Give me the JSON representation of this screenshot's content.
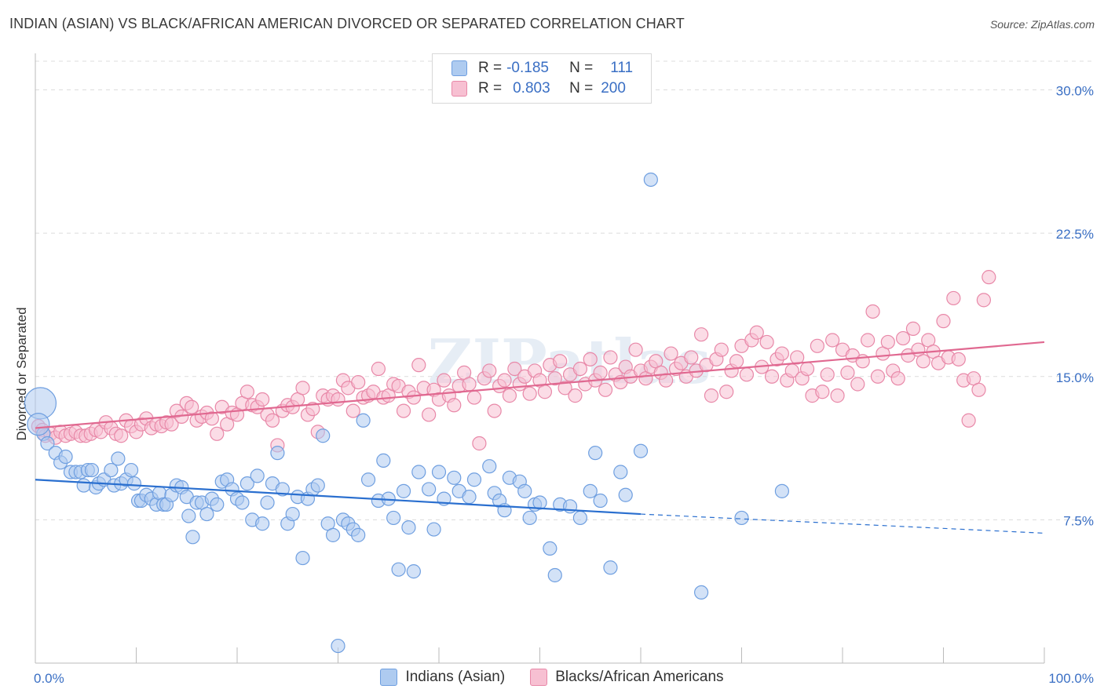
{
  "header": {
    "title": "INDIAN (ASIAN) VS BLACK/AFRICAN AMERICAN DIVORCED OR SEPARATED CORRELATION CHART",
    "source": "Source: ZipAtlas.com"
  },
  "legend_stats": [
    {
      "r_label": "R =",
      "r_value": "-0.185",
      "n_label": "N =",
      "n_value": "111"
    },
    {
      "r_label": "R =",
      "r_value": "0.803",
      "n_label": "N =",
      "n_value": "200"
    }
  ],
  "watermark": "ZIPatlas",
  "colors": {
    "blue_fill": "#aecbf0",
    "blue_stroke": "#6f9fe0",
    "blue_line": "#2a6fcf",
    "pink_fill": "#f7c0d2",
    "pink_stroke": "#e888a8",
    "pink_line": "#e06890",
    "tick_label": "#3a6fc4"
  },
  "chart_data": {
    "type": "scatter",
    "title": "INDIAN (ASIAN) VS BLACK/AFRICAN AMERICAN DIVORCED OR SEPARATED CORRELATION CHART",
    "xlabel": "",
    "ylabel": "Divorced or Separated",
    "xlim": [
      0,
      100
    ],
    "ylim": [
      0,
      31.5
    ],
    "x_tick_labels": [
      "0.0%",
      "100.0%"
    ],
    "y_ticks": [
      7.5,
      15.0,
      22.5,
      30.0
    ],
    "y_tick_labels": [
      "7.5%",
      "15.0%",
      "22.5%",
      "30.0%"
    ],
    "grid": true,
    "legend_position": "bottom",
    "series": [
      {
        "name": "Indians (Asian)",
        "color": "#aecbf0",
        "trend": {
          "x": [
            0,
            60
          ],
          "y": [
            9.6,
            7.8
          ],
          "dashed_extension_to": [
            100,
            6.8
          ]
        },
        "points": [
          [
            0.5,
            13.6
          ],
          [
            0.8,
            12.0
          ],
          [
            1.2,
            11.5
          ],
          [
            2,
            11.0
          ],
          [
            2.5,
            10.5
          ],
          [
            3,
            10.8
          ],
          [
            3.5,
            10.0
          ],
          [
            4,
            10.0
          ],
          [
            4.5,
            10.0
          ],
          [
            4.8,
            9.3
          ],
          [
            5.2,
            10.1
          ],
          [
            5.6,
            10.1
          ],
          [
            6,
            9.2
          ],
          [
            6.3,
            9.4
          ],
          [
            6.8,
            9.6
          ],
          [
            7.5,
            10.1
          ],
          [
            7.8,
            9.3
          ],
          [
            8.2,
            10.7
          ],
          [
            8.5,
            9.4
          ],
          [
            9,
            9.6
          ],
          [
            9.5,
            10.1
          ],
          [
            9.8,
            9.4
          ],
          [
            10.2,
            8.5
          ],
          [
            10.5,
            8.5
          ],
          [
            11,
            8.8
          ],
          [
            11.5,
            8.6
          ],
          [
            12,
            8.3
          ],
          [
            12.3,
            8.9
          ],
          [
            12.7,
            8.3
          ],
          [
            13,
            8.3
          ],
          [
            13.5,
            8.8
          ],
          [
            14,
            9.3
          ],
          [
            14.5,
            9.2
          ],
          [
            15,
            8.7
          ],
          [
            15.2,
            7.7
          ],
          [
            15.6,
            6.6
          ],
          [
            16,
            8.4
          ],
          [
            16.5,
            8.4
          ],
          [
            17,
            7.8
          ],
          [
            17.5,
            8.6
          ],
          [
            18,
            8.3
          ],
          [
            18.5,
            9.5
          ],
          [
            19,
            9.6
          ],
          [
            19.5,
            9.1
          ],
          [
            20,
            8.6
          ],
          [
            20.5,
            8.4
          ],
          [
            21,
            9.4
          ],
          [
            21.5,
            7.5
          ],
          [
            22,
            9.8
          ],
          [
            22.5,
            7.3
          ],
          [
            23,
            8.4
          ],
          [
            23.5,
            9.4
          ],
          [
            24,
            11.0
          ],
          [
            24.5,
            9.1
          ],
          [
            25,
            7.3
          ],
          [
            25.5,
            7.8
          ],
          [
            26,
            8.7
          ],
          [
            26.5,
            5.5
          ],
          [
            27,
            8.6
          ],
          [
            27.5,
            9.1
          ],
          [
            28,
            9.3
          ],
          [
            28.5,
            11.9
          ],
          [
            29,
            7.3
          ],
          [
            29.5,
            6.7
          ],
          [
            30,
            0.9
          ],
          [
            30.5,
            7.5
          ],
          [
            31,
            7.3
          ],
          [
            31.5,
            7.0
          ],
          [
            32,
            6.7
          ],
          [
            32.5,
            12.7
          ],
          [
            33,
            9.6
          ],
          [
            34,
            8.5
          ],
          [
            34.5,
            10.6
          ],
          [
            35,
            8.6
          ],
          [
            35.5,
            7.6
          ],
          [
            36,
            4.9
          ],
          [
            36.5,
            9.0
          ],
          [
            37,
            7.1
          ],
          [
            37.5,
            4.8
          ],
          [
            38,
            10.0
          ],
          [
            39,
            9.1
          ],
          [
            39.5,
            7.0
          ],
          [
            40,
            10.0
          ],
          [
            40.5,
            8.6
          ],
          [
            41.5,
            9.7
          ],
          [
            42,
            9.0
          ],
          [
            43,
            8.7
          ],
          [
            43.5,
            9.6
          ],
          [
            45,
            10.3
          ],
          [
            45.5,
            8.9
          ],
          [
            46,
            8.5
          ],
          [
            46.5,
            8.0
          ],
          [
            47,
            9.7
          ],
          [
            48,
            9.5
          ],
          [
            48.5,
            9.0
          ],
          [
            49,
            7.6
          ],
          [
            49.5,
            8.3
          ],
          [
            50,
            8.4
          ],
          [
            51,
            6.0
          ],
          [
            51.5,
            4.6
          ],
          [
            52,
            8.3
          ],
          [
            53,
            8.2
          ],
          [
            54,
            7.6
          ],
          [
            55,
            9.0
          ],
          [
            55.5,
            11.0
          ],
          [
            56,
            8.5
          ],
          [
            57,
            5.0
          ],
          [
            58,
            10.0
          ],
          [
            58.5,
            8.8
          ],
          [
            60,
            11.1
          ],
          [
            66,
            3.7
          ],
          [
            70,
            7.6
          ],
          [
            74,
            9.0
          ],
          [
            61,
            25.3
          ],
          [
            0.3,
            12.5
          ]
        ]
      },
      {
        "name": "Blacks/African Americans",
        "color": "#f7c0d2",
        "trend": {
          "x": [
            0,
            100
          ],
          "y": [
            12.3,
            16.8
          ]
        },
        "points": [
          [
            0.3,
            12.4
          ],
          [
            0.7,
            12.2
          ],
          [
            1,
            11.9
          ],
          [
            1.5,
            12.0
          ],
          [
            2,
            11.8
          ],
          [
            2.5,
            12.1
          ],
          [
            3,
            11.9
          ],
          [
            3.5,
            12.0
          ],
          [
            4,
            12.1
          ],
          [
            4.5,
            11.9
          ],
          [
            5,
            11.9
          ],
          [
            5.5,
            12.0
          ],
          [
            6,
            12.2
          ],
          [
            6.5,
            12.1
          ],
          [
            7,
            12.6
          ],
          [
            7.5,
            12.3
          ],
          [
            8,
            12.0
          ],
          [
            8.5,
            11.9
          ],
          [
            9,
            12.7
          ],
          [
            9.5,
            12.4
          ],
          [
            10,
            12.1
          ],
          [
            10.5,
            12.5
          ],
          [
            11,
            12.8
          ],
          [
            11.5,
            12.3
          ],
          [
            12,
            12.5
          ],
          [
            12.5,
            12.4
          ],
          [
            13,
            12.6
          ],
          [
            13.5,
            12.5
          ],
          [
            14,
            13.2
          ],
          [
            14.5,
            12.9
          ],
          [
            15,
            13.6
          ],
          [
            15.5,
            13.4
          ],
          [
            16,
            12.7
          ],
          [
            16.5,
            12.9
          ],
          [
            17,
            13.1
          ],
          [
            17.5,
            12.8
          ],
          [
            18,
            12.0
          ],
          [
            18.5,
            13.4
          ],
          [
            19,
            12.5
          ],
          [
            19.5,
            13.1
          ],
          [
            20,
            13.0
          ],
          [
            20.5,
            13.6
          ],
          [
            21,
            14.2
          ],
          [
            21.5,
            13.5
          ],
          [
            22,
            13.4
          ],
          [
            22.5,
            13.8
          ],
          [
            23,
            13.0
          ],
          [
            23.5,
            12.7
          ],
          [
            24,
            11.4
          ],
          [
            24.5,
            13.2
          ],
          [
            25,
            13.5
          ],
          [
            25.5,
            13.4
          ],
          [
            26,
            13.8
          ],
          [
            26.5,
            14.4
          ],
          [
            27,
            13.0
          ],
          [
            27.5,
            13.3
          ],
          [
            28,
            12.1
          ],
          [
            28.5,
            14.0
          ],
          [
            29,
            13.8
          ],
          [
            29.5,
            14.0
          ],
          [
            30,
            13.8
          ],
          [
            30.5,
            14.8
          ],
          [
            31,
            14.4
          ],
          [
            31.5,
            13.2
          ],
          [
            32,
            14.7
          ],
          [
            32.5,
            13.9
          ],
          [
            33,
            14.0
          ],
          [
            33.5,
            14.2
          ],
          [
            34,
            15.4
          ],
          [
            34.5,
            13.9
          ],
          [
            35,
            14.0
          ],
          [
            35.5,
            14.6
          ],
          [
            36,
            14.5
          ],
          [
            36.5,
            13.2
          ],
          [
            37,
            14.2
          ],
          [
            37.5,
            13.9
          ],
          [
            38,
            15.6
          ],
          [
            38.5,
            14.4
          ],
          [
            39,
            13.0
          ],
          [
            39.5,
            14.3
          ],
          [
            40,
            13.8
          ],
          [
            40.5,
            14.8
          ],
          [
            41,
            14.0
          ],
          [
            41.5,
            13.5
          ],
          [
            42,
            14.5
          ],
          [
            42.5,
            15.2
          ],
          [
            43,
            14.6
          ],
          [
            43.5,
            13.9
          ],
          [
            44,
            11.5
          ],
          [
            44.5,
            14.9
          ],
          [
            45,
            15.3
          ],
          [
            45.5,
            13.2
          ],
          [
            46,
            14.5
          ],
          [
            46.5,
            14.8
          ],
          [
            47,
            14.0
          ],
          [
            47.5,
            15.4
          ],
          [
            48,
            14.6
          ],
          [
            48.5,
            15.0
          ],
          [
            49,
            14.1
          ],
          [
            49.5,
            15.3
          ],
          [
            50,
            14.8
          ],
          [
            50.5,
            14.2
          ],
          [
            51,
            15.6
          ],
          [
            51.5,
            14.9
          ],
          [
            52,
            15.8
          ],
          [
            52.5,
            14.4
          ],
          [
            53,
            15.1
          ],
          [
            53.5,
            14.0
          ],
          [
            54,
            15.4
          ],
          [
            54.5,
            14.6
          ],
          [
            55,
            15.9
          ],
          [
            55.5,
            14.8
          ],
          [
            56,
            15.2
          ],
          [
            56.5,
            14.3
          ],
          [
            57,
            16.0
          ],
          [
            57.5,
            15.1
          ],
          [
            58,
            14.7
          ],
          [
            58.5,
            15.5
          ],
          [
            59,
            15.0
          ],
          [
            59.5,
            16.4
          ],
          [
            60,
            15.3
          ],
          [
            60.5,
            14.9
          ],
          [
            61,
            15.5
          ],
          [
            61.5,
            15.8
          ],
          [
            62,
            15.2
          ],
          [
            62.5,
            14.8
          ],
          [
            63,
            16.2
          ],
          [
            63.5,
            15.4
          ],
          [
            64,
            15.7
          ],
          [
            64.5,
            15.0
          ],
          [
            65,
            16.0
          ],
          [
            65.5,
            15.3
          ],
          [
            66,
            17.2
          ],
          [
            66.5,
            15.6
          ],
          [
            67,
            14.0
          ],
          [
            67.5,
            15.9
          ],
          [
            68,
            16.4
          ],
          [
            68.5,
            14.2
          ],
          [
            69,
            15.3
          ],
          [
            69.5,
            15.8
          ],
          [
            70,
            16.6
          ],
          [
            70.5,
            15.1
          ],
          [
            71,
            16.9
          ],
          [
            71.5,
            17.3
          ],
          [
            72,
            15.5
          ],
          [
            72.5,
            16.8
          ],
          [
            73,
            15.0
          ],
          [
            73.5,
            15.9
          ],
          [
            74,
            16.2
          ],
          [
            74.5,
            14.8
          ],
          [
            75,
            15.3
          ],
          [
            75.5,
            16.0
          ],
          [
            76,
            14.9
          ],
          [
            76.5,
            15.4
          ],
          [
            77,
            14.0
          ],
          [
            77.5,
            16.6
          ],
          [
            78,
            14.2
          ],
          [
            78.5,
            15.1
          ],
          [
            79,
            16.9
          ],
          [
            79.5,
            14.0
          ],
          [
            80,
            16.4
          ],
          [
            80.5,
            15.2
          ],
          [
            81,
            16.1
          ],
          [
            81.5,
            14.6
          ],
          [
            82,
            15.8
          ],
          [
            82.5,
            16.9
          ],
          [
            83,
            18.4
          ],
          [
            83.5,
            15.0
          ],
          [
            84,
            16.2
          ],
          [
            84.5,
            16.8
          ],
          [
            85,
            15.3
          ],
          [
            85.5,
            14.9
          ],
          [
            86,
            17.0
          ],
          [
            86.5,
            16.1
          ],
          [
            87,
            17.5
          ],
          [
            87.5,
            16.4
          ],
          [
            88,
            15.8
          ],
          [
            88.5,
            16.9
          ],
          [
            89,
            16.3
          ],
          [
            89.5,
            15.7
          ],
          [
            90,
            17.9
          ],
          [
            90.5,
            16.0
          ],
          [
            91,
            19.1
          ],
          [
            91.5,
            15.9
          ],
          [
            92,
            14.8
          ],
          [
            92.5,
            12.7
          ],
          [
            93,
            14.9
          ],
          [
            93.5,
            14.3
          ],
          [
            94,
            19.0
          ],
          [
            94.5,
            20.2
          ]
        ]
      }
    ]
  },
  "bottom_legend": [
    {
      "label": "Indians (Asian)"
    },
    {
      "label": "Blacks/African Americans"
    }
  ]
}
